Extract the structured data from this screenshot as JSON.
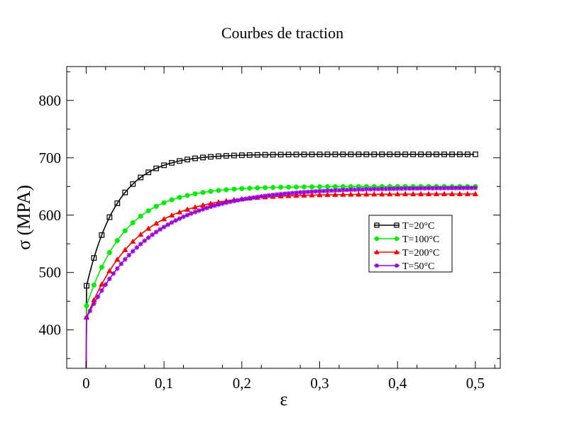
{
  "chart_data": {
    "type": "line",
    "title": "Courbes de traction",
    "xlabel": "ε",
    "ylabel": "σ  (MPA)",
    "xlim": [
      -0.025,
      0.532
    ],
    "ylim": [
      333,
      859
    ],
    "x_ticks": [
      0,
      0.1,
      0.2,
      0.3,
      0.4,
      0.5
    ],
    "x_tick_labels": [
      "0",
      "0,1",
      "0,2",
      "0,3",
      "0,4",
      "0,5"
    ],
    "y_ticks": [
      400,
      500,
      600,
      700,
      800
    ],
    "y_tick_labels": [
      "400",
      "500",
      "600",
      "700",
      "800"
    ],
    "grid": false,
    "legend_position": "center-right",
    "series": [
      {
        "name": "T=20°C",
        "color": "#000000",
        "marker": "square",
        "y0": 330,
        "ystart": 474,
        "yinf": 706,
        "rate": 25,
        "marker_step": 0.01,
        "x": [
          0,
          0.0005,
          0.003,
          0.005,
          0.01,
          0.02,
          0.03,
          0.05,
          0.08,
          0.1,
          0.15,
          0.2,
          0.3,
          0.4,
          0.5
        ],
        "values": [
          330,
          474,
          490,
          497,
          523,
          556,
          582,
          620,
          657,
          672,
          693,
          701,
          705,
          706,
          706
        ]
      },
      {
        "name": "T=100°C",
        "color": "#00ee00",
        "marker": "circle",
        "y0": 330,
        "ystart": 440,
        "yinf": 650,
        "rate": 20,
        "marker_step": 0.01,
        "x": [
          0,
          0.0005,
          0.005,
          0.01,
          0.02,
          0.03,
          0.05,
          0.08,
          0.1,
          0.15,
          0.2,
          0.3,
          0.4,
          0.5
        ],
        "values": [
          330,
          440,
          459,
          476,
          508,
          537,
          566,
          601,
          618,
          638,
          646,
          650,
          650,
          650
        ]
      },
      {
        "name": "T=200°C",
        "color": "#ff0000",
        "marker": "triangle",
        "y0": 330,
        "ystart": 420,
        "yinf": 637,
        "rate": 16,
        "marker_step": 0.01,
        "x": [
          0,
          0.0005,
          0.005,
          0.01,
          0.02,
          0.03,
          0.05,
          0.08,
          0.1,
          0.15,
          0.2,
          0.3,
          0.4,
          0.5
        ],
        "values": [
          330,
          420,
          448,
          466,
          498,
          524,
          556,
          590,
          604,
          624,
          632,
          637,
          637,
          637
        ]
      },
      {
        "name": "T=50°C",
        "color": "#9900dd",
        "marker": "star",
        "y0": 330,
        "ystart": 420,
        "yinf": 648,
        "rate": 12,
        "marker_step": 0.005,
        "x": [
          0,
          0.0005,
          0.005,
          0.01,
          0.02,
          0.03,
          0.05,
          0.08,
          0.1,
          0.15,
          0.2,
          0.3,
          0.4,
          0.5
        ],
        "values": [
          330,
          420,
          431,
          452,
          485,
          505,
          535,
          566,
          582,
          612,
          628,
          644,
          647,
          648
        ]
      }
    ]
  }
}
